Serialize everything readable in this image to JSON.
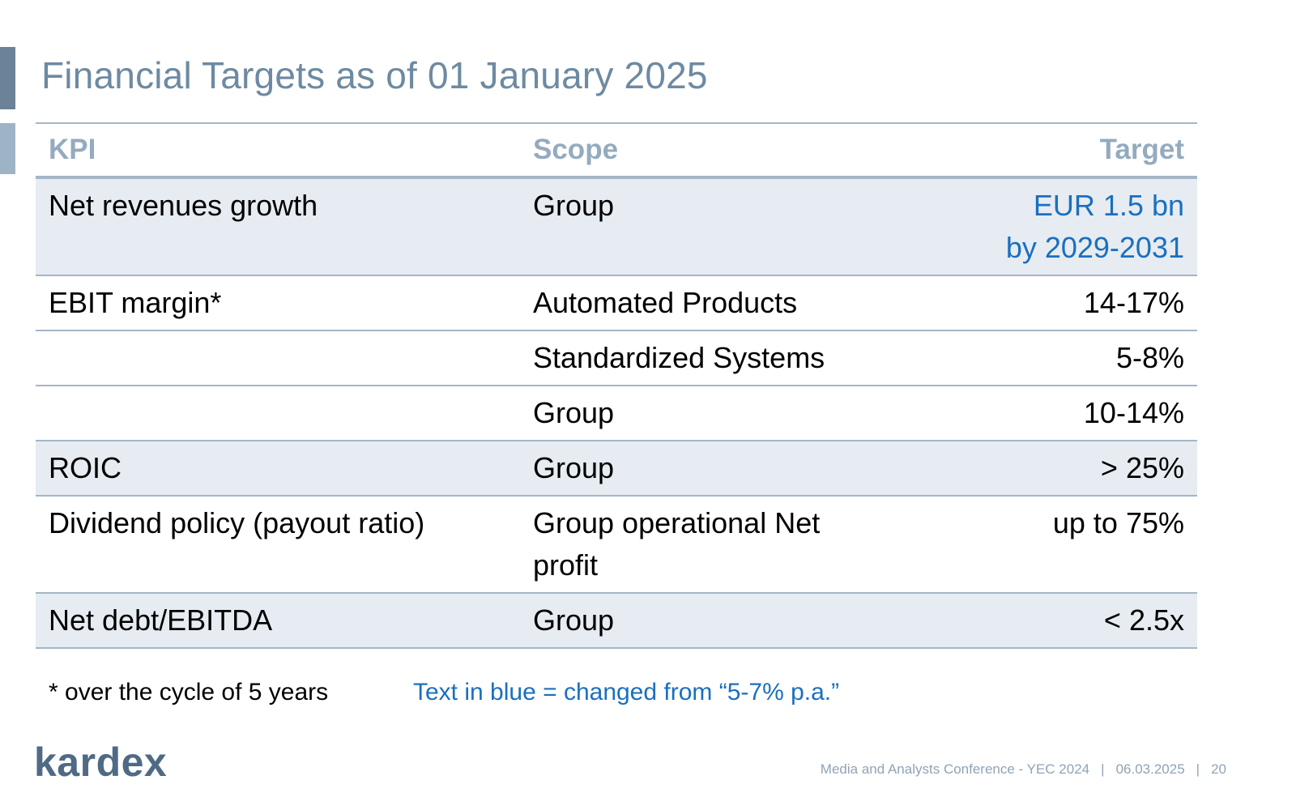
{
  "slide": {
    "title": "Financial Targets as of 01 January 2025"
  },
  "table": {
    "headers": {
      "kpi": "KPI",
      "scope": "Scope",
      "target": "Target"
    },
    "rows": [
      {
        "kpi": "Net revenues growth",
        "scope": "Group",
        "target_line1": "EUR 1.5 bn",
        "target_line2": "by 2029-2031"
      },
      {
        "kpi": "EBIT margin*",
        "scope": "Automated Products",
        "target": "14-17%"
      },
      {
        "kpi": "",
        "scope": "Standardized Systems",
        "target": "5-8%"
      },
      {
        "kpi": "",
        "scope": "Group",
        "target": "10-14%"
      },
      {
        "kpi": "ROIC",
        "scope": "Group",
        "target": "> 25%"
      },
      {
        "kpi": "Dividend policy (payout ratio)",
        "scope": "Group operational Net profit",
        "target": "up to 75%"
      },
      {
        "kpi": "Net debt/EBITDA",
        "scope": "Group",
        "target": "< 2.5x"
      }
    ]
  },
  "notes": {
    "footnote": "* over the cycle of 5 years",
    "blue_note": "Text in blue = changed from “5-7% p.a.”"
  },
  "branding": {
    "logo_text": "kardex"
  },
  "footer": {
    "event": "Media and Analysts Conference - YEC 2024",
    "date": "06.03.2025",
    "page_number": "20",
    "separator": "|"
  },
  "colors": {
    "title": "#6d8aa2",
    "header_text": "#94abbf",
    "shade": "#e6ecf1",
    "rule": "#a4b6c7",
    "highlight_blue": "#1a6fc0",
    "logo": "#4f6a85"
  }
}
